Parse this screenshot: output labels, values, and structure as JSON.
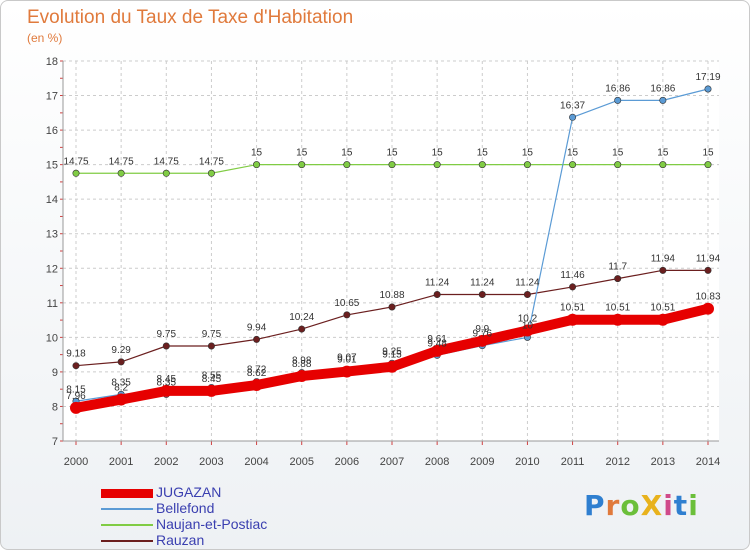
{
  "title": "Evolution du Taux de Taxe d'Habitation",
  "subtitle": "(en %)",
  "brand": "ProXiti",
  "colors": {
    "title": "#e07a3c",
    "grid": "#cccccc",
    "legend_text": "#3a3fb0"
  },
  "chart_data": {
    "type": "line",
    "x": [
      2000,
      2001,
      2002,
      2003,
      2004,
      2005,
      2006,
      2007,
      2008,
      2009,
      2010,
      2011,
      2012,
      2013,
      2014
    ],
    "ylim": [
      7,
      18
    ],
    "yticks": [
      7,
      8,
      9,
      10,
      11,
      12,
      13,
      14,
      15,
      16,
      17,
      18
    ],
    "grid": true,
    "legend_position": "bottom-left",
    "series": [
      {
        "name": "JUGAZAN",
        "color": "#e60000",
        "width": 10,
        "values": [
          7.96,
          8.2,
          8.45,
          8.45,
          8.62,
          8.88,
          9.01,
          9.15,
          9.61,
          9.9,
          10.2,
          10.51,
          10.51,
          10.51,
          10.83
        ],
        "labels": [
          "7.96",
          "8.2",
          "8.45",
          "8.45",
          "8.62",
          "8.88",
          "9.01",
          "9.15",
          "9.61",
          "9.9",
          "10.2",
          "10.51",
          "10.51",
          "10.51",
          "10.83"
        ]
      },
      {
        "name": "Bellefond",
        "color": "#5b9bd5",
        "width": 1.2,
        "values": [
          8.15,
          8.35,
          8.35,
          8.55,
          8.72,
          8.98,
          9.07,
          9.25,
          9.48,
          9.76,
          10.0,
          16.37,
          16.86,
          16.86,
          17.19
        ],
        "labels": [
          "8.15",
          "8.35",
          "8.35",
          "8.55",
          "8.72",
          "8.98",
          "9.07",
          "9.25",
          "9.48",
          "9.76",
          "10",
          "16.37",
          "16.86",
          "16.86",
          "17.19"
        ]
      },
      {
        "name": "Naujan-et-Postiac",
        "color": "#80cc44",
        "width": 1.2,
        "values": [
          14.75,
          14.75,
          14.75,
          14.75,
          15,
          15,
          15,
          15,
          15,
          15,
          15,
          15,
          15,
          15,
          15
        ],
        "labels": [
          "14.75",
          "14.75",
          "14.75",
          "14.75",
          "15",
          "15",
          "15",
          "15",
          "15",
          "15",
          "15",
          "15",
          "15",
          "15",
          "15"
        ]
      },
      {
        "name": "Rauzan",
        "color": "#6b1f1f",
        "width": 1.2,
        "values": [
          9.18,
          9.29,
          9.75,
          9.75,
          9.94,
          10.24,
          10.65,
          10.88,
          11.24,
          11.24,
          11.24,
          11.46,
          11.7,
          11.94,
          11.94
        ],
        "labels": [
          "9.18",
          "9.29",
          "9.75",
          "9.75",
          "9.94",
          "10.24",
          "10.65",
          "10.88",
          "11.24",
          "11.24",
          "11.24",
          "11.46",
          "11.7",
          "11.94",
          "11.94"
        ]
      }
    ]
  }
}
